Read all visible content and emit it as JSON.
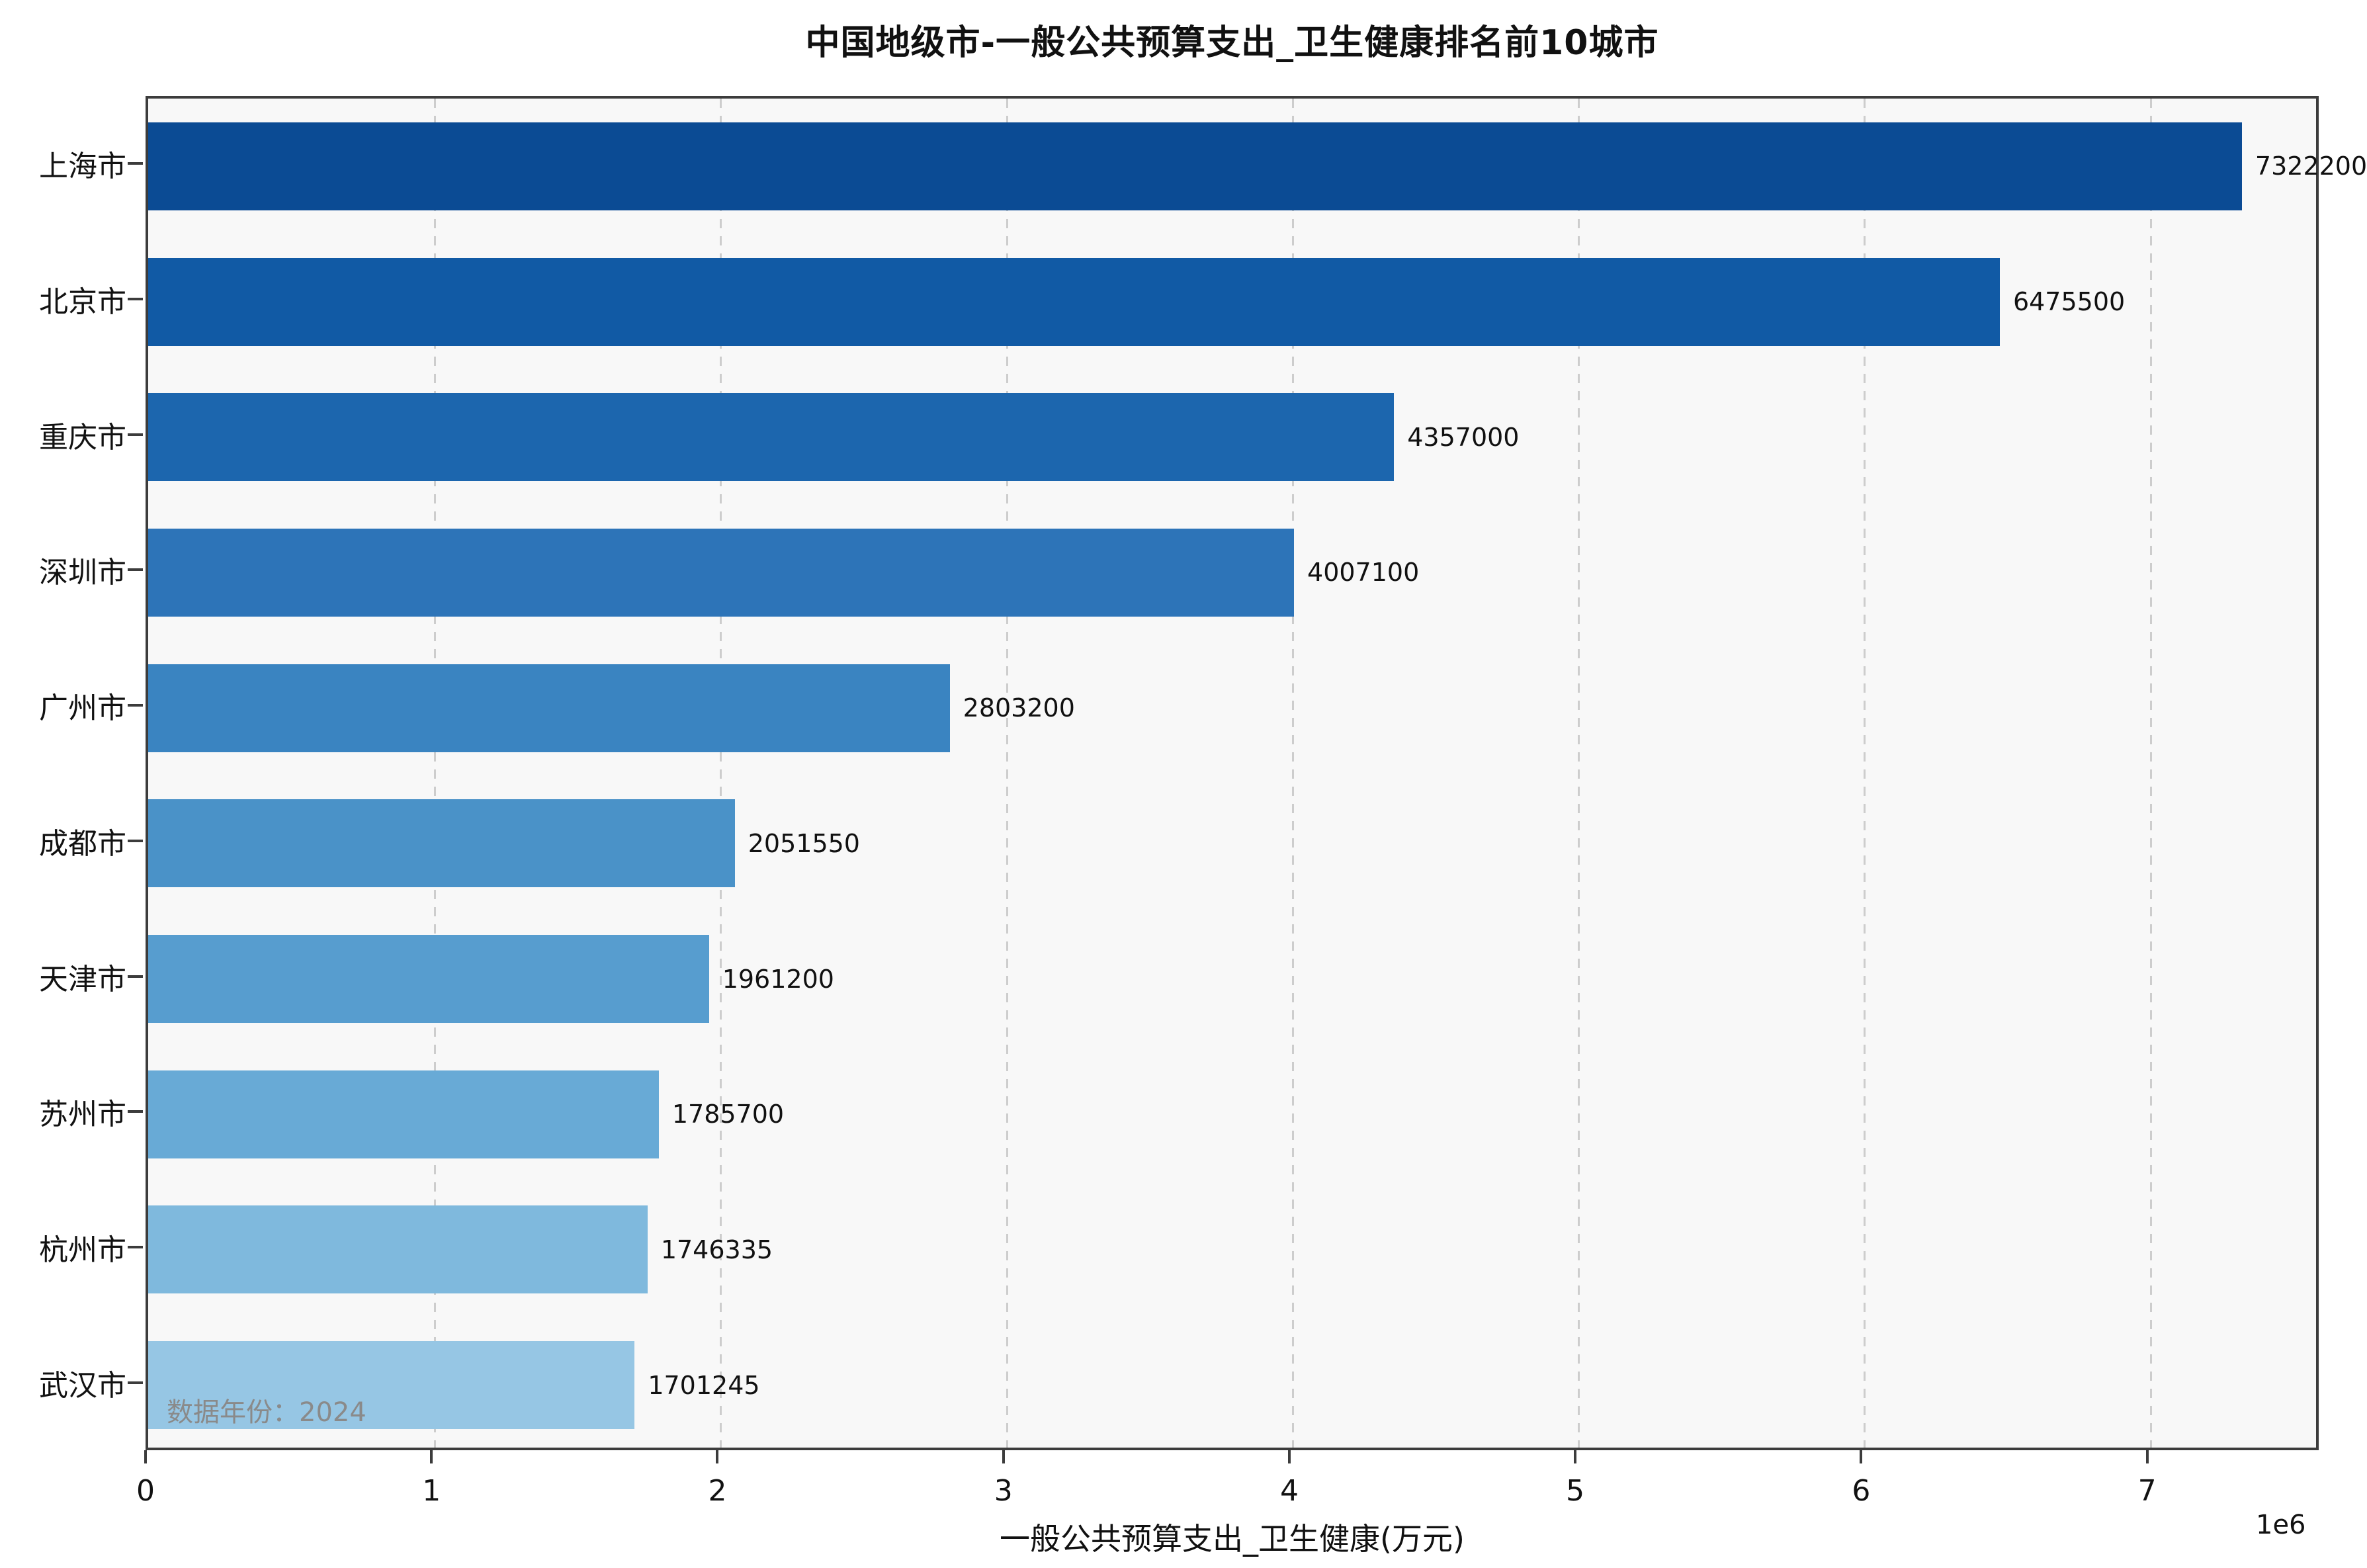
{
  "title": "中国地级市-一般公共预算支出_卫生健康排名前10城市",
  "annotation": "数据年份：2024",
  "chart_data": {
    "type": "bar",
    "orientation": "horizontal",
    "title": "中国地级市-一般公共预算支出_卫生健康排名前10城市",
    "xlabel": "一般公共预算支出_卫生健康(万元)",
    "ylabel": "",
    "categories": [
      "上海市",
      "北京市",
      "重庆市",
      "深圳市",
      "广州市",
      "成都市",
      "天津市",
      "苏州市",
      "杭州市",
      "武汉市"
    ],
    "values": [
      7322200,
      6475500,
      4357000,
      4007100,
      2803200,
      2051550,
      1961200,
      1785700,
      1746335,
      1701245
    ],
    "value_labels": [
      "7322200",
      "6475500",
      "4357000",
      "4007100",
      "2803200",
      "2051550",
      "1961200",
      "1785700",
      "1746335",
      "1701245"
    ],
    "bar_colors": [
      "#0b4b94",
      "#115aa5",
      "#1c66ae",
      "#2d74b8",
      "#3a84c1",
      "#4a92c8",
      "#579dcf",
      "#68aad6",
      "#7fb9dd",
      "#96c6e4"
    ],
    "xlim": [
      0,
      7600000
    ],
    "x_ticks": [
      0,
      1,
      2,
      3,
      4,
      5,
      6,
      7
    ],
    "x_scale_factor": 1000000,
    "axis_offset_label": "1e6",
    "grid": "vertical-dashed",
    "plot_background": "#f8f8f8",
    "grid_color": "#cdcdcd",
    "spine_color": "#3c3c3c",
    "annotation": "数据年份：2024"
  }
}
